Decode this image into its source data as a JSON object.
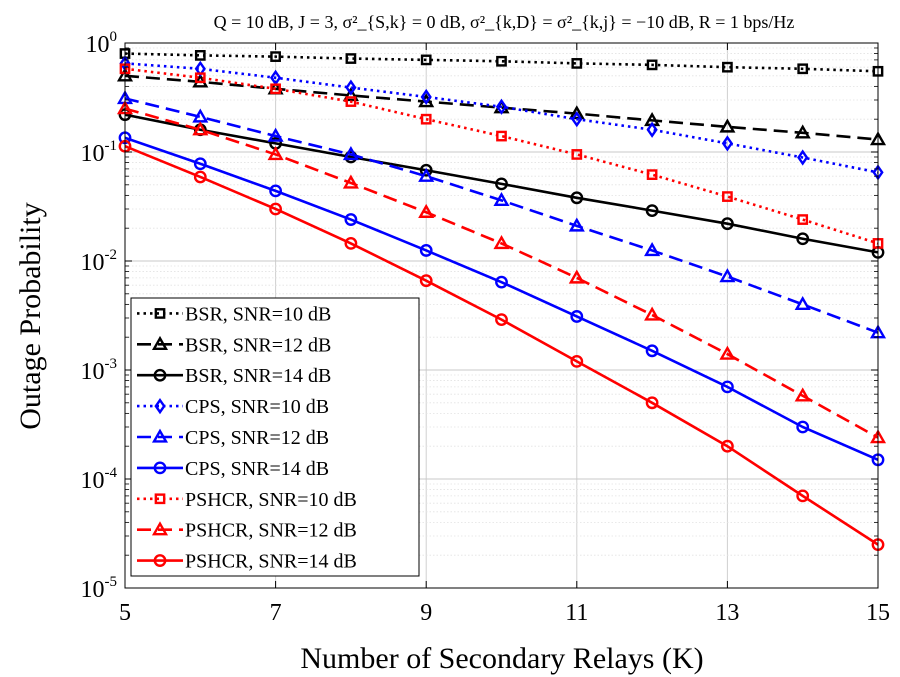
{
  "chart_data": {
    "type": "line",
    "title": "Q = 10 dB, J = 3, σ²_{S,k} = 0 dB, σ²_{k,D} = σ²_{k,j} = −10 dB, R = 1 bps/Hz",
    "xlabel": "Number of Secondary Relays (K)",
    "ylabel": "Outage Probability",
    "xlim": [
      5,
      15
    ],
    "ylim": [
      1e-05,
      1
    ],
    "yscale": "log",
    "grid": true,
    "legend_position": "bottom-left",
    "x": [
      5,
      6,
      7,
      8,
      9,
      10,
      11,
      12,
      13,
      14,
      15
    ],
    "x_ticks": [
      5,
      7,
      9,
      11,
      13,
      15
    ],
    "y_ticks": [
      {
        "base": "10",
        "exp": "-5",
        "value": 1e-05
      },
      {
        "base": "10",
        "exp": "-4",
        "value": 0.0001
      },
      {
        "base": "10",
        "exp": "-3",
        "value": 0.001
      },
      {
        "base": "10",
        "exp": "-2",
        "value": 0.01
      },
      {
        "base": "10",
        "exp": "-1",
        "value": 0.1
      },
      {
        "base": "10",
        "exp": "0",
        "value": 1
      }
    ],
    "series": [
      {
        "name": "BSR, SNR=10 dB",
        "color": "#000000",
        "dash": "dot",
        "marker": "square",
        "values": [
          0.8,
          0.77,
          0.75,
          0.72,
          0.7,
          0.68,
          0.65,
          0.63,
          0.6,
          0.58,
          0.55
        ]
      },
      {
        "name": "BSR, SNR=12 dB",
        "color": "#000000",
        "dash": "dash",
        "marker": "triangle",
        "values": [
          0.5,
          0.44,
          0.38,
          0.33,
          0.29,
          0.255,
          0.225,
          0.195,
          0.17,
          0.15,
          0.13
        ]
      },
      {
        "name": "BSR, SNR=14 dB",
        "color": "#000000",
        "dash": "solid",
        "marker": "circle",
        "values": [
          0.22,
          0.16,
          0.12,
          0.09,
          0.068,
          0.051,
          0.038,
          0.029,
          0.022,
          0.016,
          0.012
        ]
      },
      {
        "name": "CPS, SNR=10 dB",
        "color": "#0000ff",
        "dash": "dot",
        "marker": "diamond",
        "values": [
          0.65,
          0.58,
          0.48,
          0.39,
          0.32,
          0.26,
          0.2,
          0.16,
          0.12,
          0.089,
          0.065
        ]
      },
      {
        "name": "CPS, SNR=12 dB",
        "color": "#0000ff",
        "dash": "dash",
        "marker": "triangle",
        "values": [
          0.31,
          0.21,
          0.14,
          0.095,
          0.06,
          0.036,
          0.021,
          0.0125,
          0.0072,
          0.004,
          0.0022
        ]
      },
      {
        "name": "CPS, SNR=14 dB",
        "color": "#0000ff",
        "dash": "solid",
        "marker": "circle",
        "values": [
          0.135,
          0.078,
          0.044,
          0.024,
          0.0125,
          0.0064,
          0.0031,
          0.0015,
          0.0007,
          0.0003,
          0.00015
        ]
      },
      {
        "name": "PSHCR, SNR=10 dB",
        "color": "#ff0000",
        "dash": "dot",
        "marker": "square",
        "values": [
          0.58,
          0.48,
          0.38,
          0.29,
          0.2,
          0.14,
          0.095,
          0.062,
          0.039,
          0.024,
          0.0145
        ]
      },
      {
        "name": "PSHCR, SNR=12 dB",
        "color": "#ff0000",
        "dash": "dash",
        "marker": "triangle",
        "values": [
          0.25,
          0.16,
          0.095,
          0.052,
          0.028,
          0.0145,
          0.007,
          0.0032,
          0.0014,
          0.00058,
          0.00024
        ]
      },
      {
        "name": "PSHCR, SNR=14 dB",
        "color": "#ff0000",
        "dash": "solid",
        "marker": "circle",
        "values": [
          0.113,
          0.059,
          0.03,
          0.0145,
          0.0066,
          0.0029,
          0.0012,
          0.0005,
          0.0002,
          7e-05,
          2.5e-05
        ]
      }
    ]
  }
}
